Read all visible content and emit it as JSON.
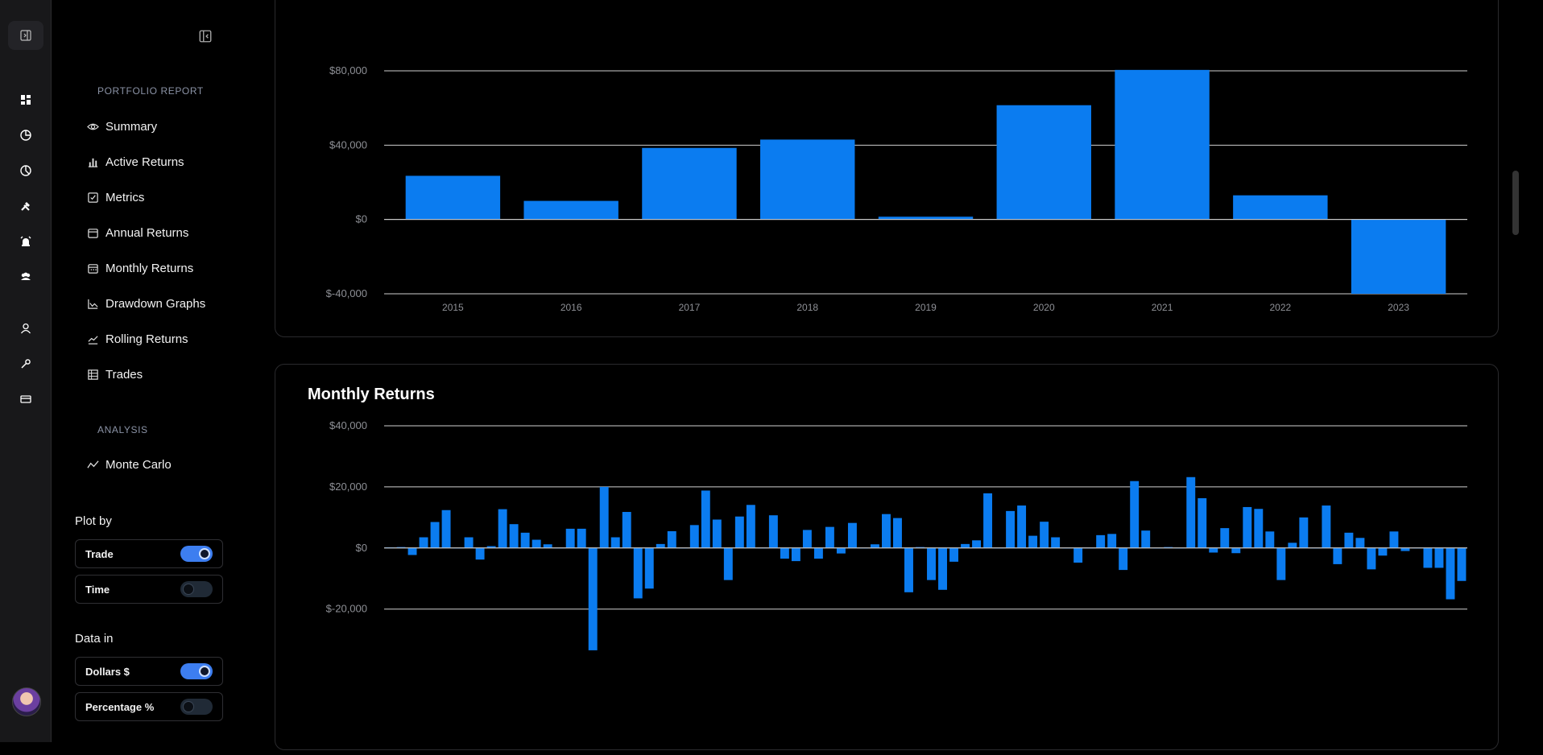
{
  "sidebar": {
    "report_section": "PORTFOLIO REPORT",
    "items": [
      {
        "label": "Summary",
        "icon": "eye-icon"
      },
      {
        "label": "Active Returns",
        "icon": "bar-chart-icon"
      },
      {
        "label": "Metrics",
        "icon": "checkbox-icon"
      },
      {
        "label": "Annual Returns",
        "icon": "calendar-icon"
      },
      {
        "label": "Monthly Returns",
        "icon": "calendar-grid-icon"
      },
      {
        "label": "Drawdown Graphs",
        "icon": "area-chart-icon"
      },
      {
        "label": "Rolling Returns",
        "icon": "trend-line-icon"
      },
      {
        "label": "Trades",
        "icon": "table-icon"
      }
    ],
    "analysis_section": "ANALYSIS",
    "analysis_items": [
      {
        "label": "Monte Carlo",
        "icon": "zigzag-icon"
      }
    ],
    "plot_by": {
      "label": "Plot by",
      "options": [
        {
          "label": "Trade",
          "on": true
        },
        {
          "label": "Time",
          "on": false
        }
      ]
    },
    "data_in": {
      "label": "Data in",
      "options": [
        {
          "label": "Dollars $",
          "on": true
        },
        {
          "label": "Percentage %",
          "on": false
        }
      ]
    }
  },
  "rail": {
    "icons": [
      "panel-toggle-icon",
      "dashboard-icon",
      "pie-chart-icon",
      "pie-chart-icon",
      "tools-icon",
      "alarm-icon",
      "users-icon",
      "user-icon",
      "wrench-icon",
      "credit-card-icon"
    ]
  },
  "colors": {
    "bar": "#0b7cf0",
    "grid": "#cfcfcf",
    "tick": "#8e9096",
    "accent": "#3d7ef0"
  },
  "chart_data": [
    {
      "type": "bar",
      "title": "",
      "categories": [
        "2015",
        "2016",
        "2017",
        "2018",
        "2019",
        "2020",
        "2021",
        "2022",
        "2023"
      ],
      "values": [
        23500,
        10000,
        38500,
        43000,
        1500,
        61500,
        80500,
        13000,
        -40000
      ],
      "ylim": [
        -40000,
        80000
      ],
      "yticks": [
        "$80,000",
        "$40,000",
        "$0",
        "$-40,000"
      ],
      "ytick_values": [
        80000,
        40000,
        0,
        -40000
      ],
      "xlabel": "",
      "ylabel": "",
      "grid": true
    },
    {
      "type": "bar",
      "title": "Monthly Returns",
      "values": [
        200,
        300,
        -2300,
        3500,
        8500,
        12400,
        0,
        3500,
        -3800,
        600,
        12700,
        7800,
        5000,
        2700,
        1200,
        0,
        6300,
        6300,
        -33500,
        20000,
        3500,
        11800,
        -16500,
        -13300,
        1300,
        5500,
        0,
        7500,
        18800,
        9300,
        -10500,
        10300,
        14100,
        0,
        10700,
        -3500,
        -4300,
        5900,
        -3500,
        6900,
        -1800,
        8200,
        0,
        1200,
        11100,
        9800,
        -14500,
        300,
        -10500,
        -13700,
        -4500,
        1300,
        2500,
        17900,
        0,
        12100,
        13900,
        4000,
        8600,
        3500,
        0,
        -4800,
        0,
        4200,
        4600,
        -7200,
        21900,
        5700,
        0,
        300,
        0,
        23200,
        16300,
        -1500,
        6500,
        -1700,
        13400,
        12800,
        5400,
        -10500,
        1700,
        10000,
        0,
        13900,
        -5300,
        5000,
        3300,
        -7000,
        -2500,
        5400,
        -1000,
        0,
        -6500,
        -6500,
        -16800,
        -10800
      ],
      "ylim": [
        -38000,
        40000
      ],
      "yticks": [
        "$40,000",
        "$20,000",
        "$0",
        "$-20,000"
      ],
      "ytick_values": [
        40000,
        20000,
        0,
        -20000
      ],
      "xlabel": "",
      "ylabel": "",
      "grid": true
    }
  ]
}
